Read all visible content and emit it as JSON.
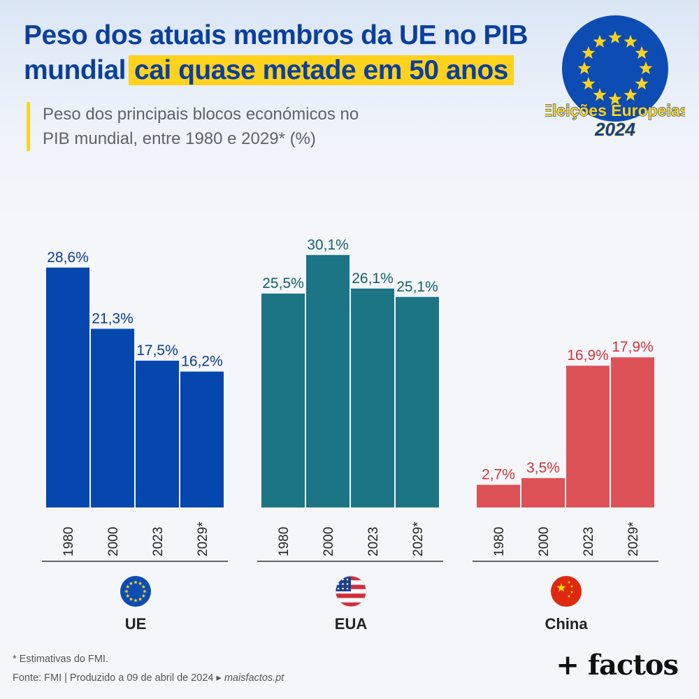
{
  "header": {
    "title_line1": "Peso dos atuais membros da UE no PIB",
    "title_line2_plain": "mundial",
    "title_line2_highlight": "cai quase metade em 50 anos",
    "subtitle_line1": "Peso dos principais blocos económicos no",
    "subtitle_line2": "PIB mundial, entre 1980 e 2029* (%)"
  },
  "badge": {
    "line1": "Eleições Europeias",
    "line2": "2024",
    "icon": "eu-flag-icon"
  },
  "colors": {
    "ue": "#0547ae",
    "eua": "#1b7585",
    "china": "#dc5257",
    "ue_label": "#0b3b94",
    "eua_label": "#135f6d",
    "china_label": "#d0343c",
    "title": "#0b3f9e",
    "highlight": "#ffd21e"
  },
  "chart_data": {
    "type": "bar",
    "categories": [
      "1980",
      "2000",
      "2023",
      "2029*"
    ],
    "ylim": [
      0,
      32
    ],
    "grid": false,
    "legend": "none",
    "groups": [
      {
        "name": "UE",
        "icon": "eu-flag-icon",
        "values": [
          28.6,
          21.3,
          17.5,
          16.2
        ],
        "labels": [
          "28,6%",
          "21,3%",
          "17,5%",
          "16,2%"
        ]
      },
      {
        "name": "EUA",
        "icon": "us-flag-icon",
        "values": [
          25.5,
          30.1,
          26.1,
          25.1
        ],
        "labels": [
          "25,5%",
          "30,1%",
          "26,1%",
          "25,1%"
        ]
      },
      {
        "name": "China",
        "icon": "china-flag-icon",
        "values": [
          2.7,
          3.5,
          16.9,
          17.9
        ],
        "labels": [
          "2,7%",
          "3,5%",
          "16,9%",
          "17,9%"
        ]
      }
    ]
  },
  "footer": {
    "note": "* Estimativas do FMI.",
    "source": "Fonte: FMI | Produzido a 09 de abril de 2024 ▸",
    "site": "maisfactos.pt",
    "logo": "+ factos"
  }
}
